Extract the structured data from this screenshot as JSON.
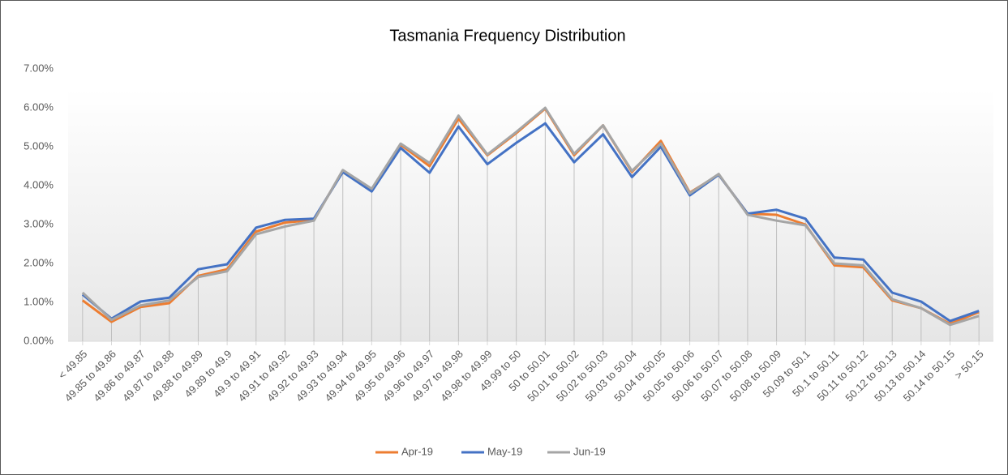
{
  "chart_data": {
    "type": "line",
    "title": "Tasmania Frequency Distribution",
    "categories": [
      "< 49.85",
      "49.85 to 49.86",
      "49.86 to 49.87",
      "49.87 to 49.88",
      "49.88 to 49.89",
      "49.89 to 49.9",
      "49.9 to 49.91",
      "49.91 to 49.92",
      "49.92 to 49.93",
      "49.93 to 49.94",
      "49.94 to 49.95",
      "49.95 to 49.96",
      "49.96 to 49.97",
      "49.97 to 49.98",
      "49.98 to 49.99",
      "49.99 to 50",
      "50 to 50.01",
      "50.01 to 50.02",
      "50.02 to 50.03",
      "50.03 to 50.04",
      "50.04 to 50.05",
      "50.05 to 50.06",
      "50.06 to 50.07",
      "50.07 to 50.08",
      "50.08 to 50.09",
      "50.09 to 50.1",
      "50.1 to 50.11",
      "50.11 to 50.12",
      "50.12 to 50.13",
      "50.13 to 50.14",
      "50.14 to 50.15",
      "> 50.15"
    ],
    "series": [
      {
        "name": "Apr-19",
        "color": "#ed7d31",
        "values": [
          1.05,
          0.5,
          0.88,
          0.98,
          1.68,
          1.85,
          2.82,
          3.05,
          3.12,
          4.38,
          3.9,
          5.05,
          4.5,
          5.72,
          4.78,
          5.35,
          5.98,
          4.78,
          5.55,
          4.35,
          5.15,
          3.82,
          4.28,
          3.28,
          3.25,
          3.0,
          1.95,
          1.9,
          1.05,
          0.85,
          0.45,
          0.75
        ]
      },
      {
        "name": "May-19",
        "color": "#4472c4",
        "values": [
          1.2,
          0.58,
          1.02,
          1.12,
          1.85,
          1.98,
          2.92,
          3.12,
          3.15,
          4.35,
          3.85,
          4.97,
          4.33,
          5.52,
          4.55,
          5.1,
          5.6,
          4.6,
          5.32,
          4.22,
          5.0,
          3.75,
          4.28,
          3.28,
          3.38,
          3.15,
          2.15,
          2.1,
          1.25,
          1.02,
          0.52,
          0.78
        ]
      },
      {
        "name": "Jun-19",
        "color": "#a5a5a5",
        "values": [
          1.25,
          0.55,
          0.92,
          1.05,
          1.65,
          1.8,
          2.75,
          2.95,
          3.1,
          4.4,
          3.92,
          5.08,
          4.58,
          5.8,
          4.8,
          5.38,
          6.0,
          4.82,
          5.55,
          4.38,
          5.08,
          3.8,
          4.3,
          3.25,
          3.1,
          2.98,
          2.0,
          1.95,
          1.08,
          0.85,
          0.42,
          0.65
        ]
      }
    ],
    "ylim": [
      0,
      7
    ],
    "yticks": [
      {
        "value": 0,
        "label": "0.00%"
      },
      {
        "value": 1,
        "label": "1.00%"
      },
      {
        "value": 2,
        "label": "2.00%"
      },
      {
        "value": 3,
        "label": "3.00%"
      },
      {
        "value": 4,
        "label": "4.00%"
      },
      {
        "value": 5,
        "label": "5.00%"
      },
      {
        "value": 6,
        "label": "6.00%"
      },
      {
        "value": 7,
        "label": "7.00%"
      }
    ],
    "drop_lines": true,
    "legend": "bottom"
  }
}
